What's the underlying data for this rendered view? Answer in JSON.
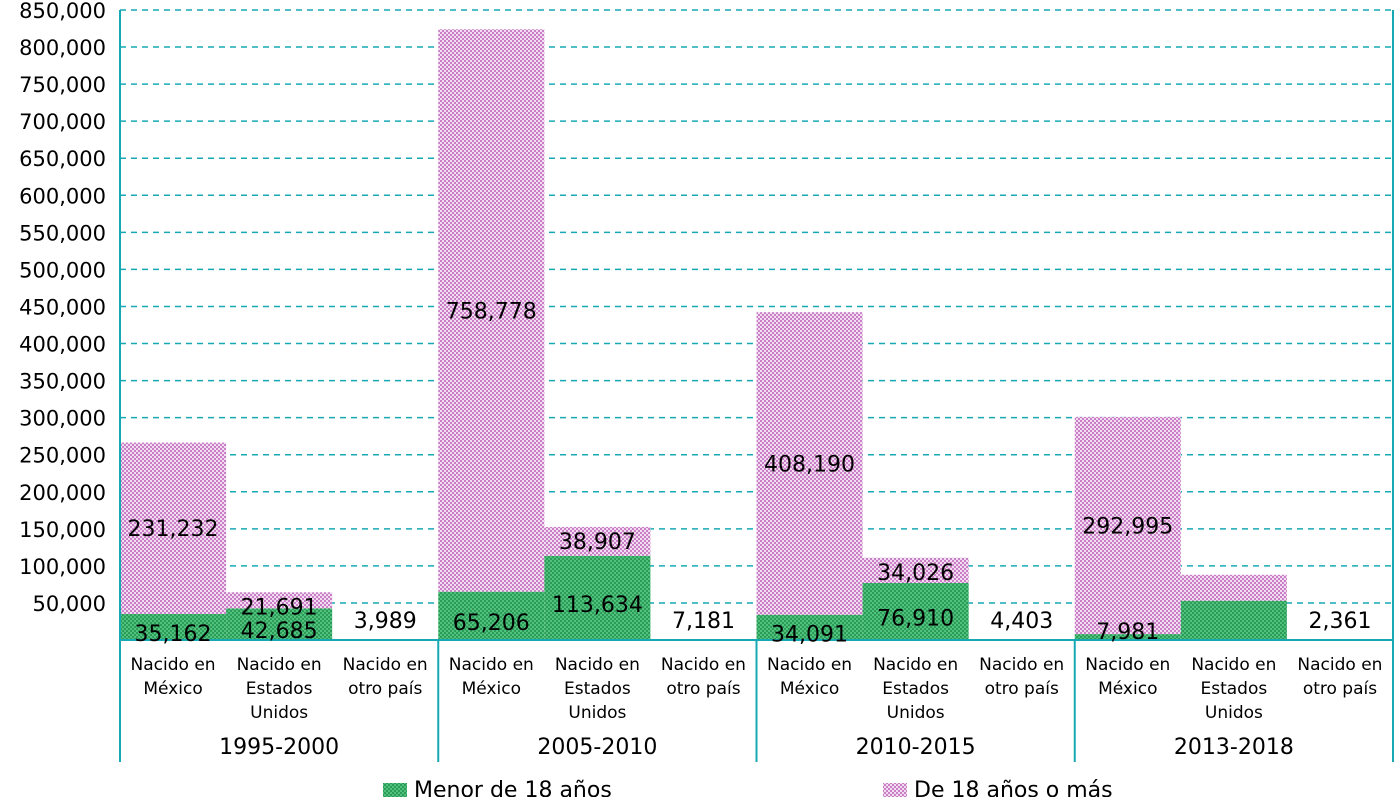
{
  "chart_data": {
    "type": "bar",
    "stacked": true,
    "ylim": [
      0,
      850000
    ],
    "y_ticks": [
      "50,000",
      "100,000",
      "150,000",
      "200,000",
      "250,000",
      "300,000",
      "350,000",
      "400,000",
      "450,000",
      "500,000",
      "550,000",
      "600,000",
      "650,000",
      "700,000",
      "750,000",
      "800,000",
      "850,000"
    ],
    "grid": "horizontal dashed",
    "groups": [
      {
        "label": "1995-2000",
        "categories": [
          "Nacido en México",
          "Nacido en Estados Unidos",
          "Nacido en otro país"
        ],
        "cat_lines": [
          [
            "Nacido en",
            "México"
          ],
          [
            "Nacido en",
            "Estados",
            "Unidos"
          ],
          [
            "Nacido en",
            "otro país"
          ]
        ],
        "menor": [
          35162,
          42685,
          3989
        ],
        "mayor": [
          231232,
          21691,
          null
        ],
        "menor_labels": [
          "35,162",
          "42,685",
          "3,989"
        ],
        "mayor_labels": [
          "231,232",
          "21,691",
          ""
        ]
      },
      {
        "label": "2005-2010",
        "categories": [
          "Nacido en México",
          "Nacido en Estados Unidos",
          "Nacido en otro país"
        ],
        "cat_lines": [
          [
            "Nacido en",
            "México"
          ],
          [
            "Nacido en",
            "Estados",
            "Unidos"
          ],
          [
            "Nacido en",
            "otro país"
          ]
        ],
        "menor": [
          65206,
          113634,
          7181
        ],
        "mayor": [
          758778,
          38907,
          null
        ],
        "menor_labels": [
          "65,206",
          "113,634",
          "7,181"
        ],
        "mayor_labels": [
          "758,778",
          "38,907",
          ""
        ]
      },
      {
        "label": "2010-2015",
        "categories": [
          "Nacido en México",
          "Nacido en Estados Unidos",
          "Nacido en otro país"
        ],
        "cat_lines": [
          [
            "Nacido en",
            "México"
          ],
          [
            "Nacido en",
            "Estados",
            "Unidos"
          ],
          [
            "Nacido en",
            "otro país"
          ]
        ],
        "menor": [
          34091,
          76910,
          4403
        ],
        "mayor": [
          408190,
          34026,
          null
        ],
        "menor_labels": [
          "34,091",
          "76,910",
          "4,403"
        ],
        "mayor_labels": [
          "408,190",
          "34,026",
          ""
        ]
      },
      {
        "label": "2013-2018",
        "categories": [
          "Nacido en México",
          "Nacido en Estados Unidos",
          "Nacido en otro país"
        ],
        "cat_lines": [
          [
            "Nacido en",
            "México"
          ],
          [
            "Nacido en",
            "Estados",
            "Unidos"
          ],
          [
            "Nacido en",
            "otro país"
          ]
        ],
        "menor": [
          7981,
          53000,
          2361
        ],
        "mayor": [
          292995,
          35000,
          null
        ],
        "menor_labels": [
          "7,981",
          "",
          "2,361"
        ],
        "mayor_labels": [
          "292,995",
          "",
          ""
        ]
      }
    ],
    "series": [
      {
        "name": "Menor de 18 años",
        "color": "#3cb371"
      },
      {
        "name": "De 18 años o más",
        "color": "#d99ad6"
      }
    ],
    "legend_position": "bottom"
  }
}
